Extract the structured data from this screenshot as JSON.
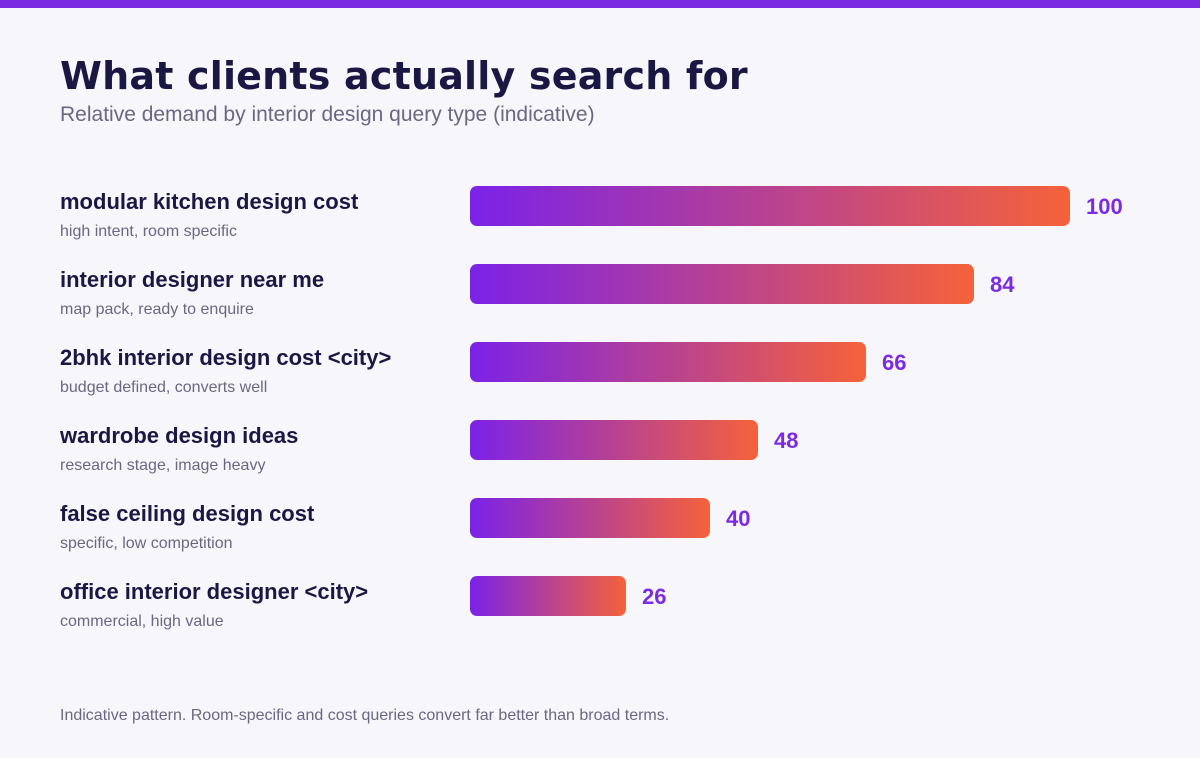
{
  "title": "What clients actually search for",
  "subtitle": "Relative demand by interior design query type (indicative)",
  "footnote": "Indicative pattern. Room-specific and cost queries convert far better than broad terms.",
  "colors": {
    "accent": "#7b2be2",
    "bar_start": "#7b22e8",
    "bar_end": "#f5623a",
    "text_dark": "#1b1743",
    "text_muted": "#6a6880",
    "background": "#f7f6fb"
  },
  "chart_data": {
    "type": "bar",
    "orientation": "horizontal",
    "categories": [
      "modular kitchen design cost",
      "interior designer near me",
      "2bhk interior design cost <city>",
      "wardrobe design ideas",
      "false ceiling design cost",
      "office interior designer <city>"
    ],
    "descriptions": [
      "high intent, room specific",
      "map pack, ready to enquire",
      "budget defined, converts well",
      "research stage, image heavy",
      "specific, low competition",
      "commercial, high value"
    ],
    "values": [
      100,
      84,
      66,
      48,
      40,
      26
    ],
    "xlim": [
      0,
      100
    ],
    "grid": false,
    "legend": "none",
    "data_labels": true
  }
}
